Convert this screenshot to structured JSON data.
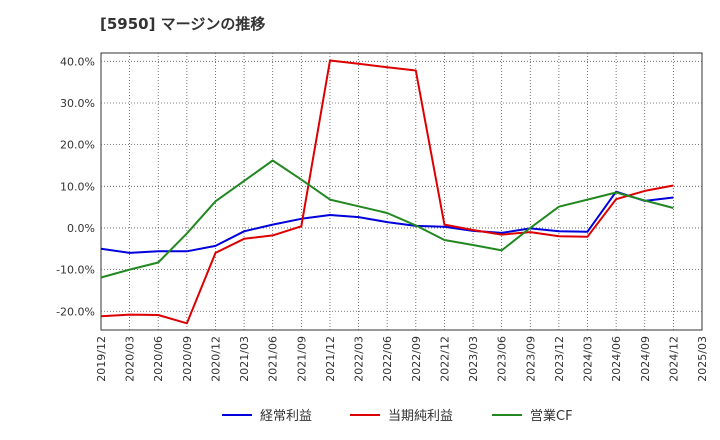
{
  "title": "[5950]  マージンの推移",
  "chart_data": {
    "type": "line",
    "title": "[5950]  マージンの推移",
    "x": [
      "2019/12",
      "2020/03",
      "2020/06",
      "2020/09",
      "2020/12",
      "2021/03",
      "2021/06",
      "2021/09",
      "2021/12",
      "2022/03",
      "2022/06",
      "2022/09",
      "2022/12",
      "2023/03",
      "2023/06",
      "2023/09",
      "2023/12",
      "2024/03",
      "2024/06",
      "2024/09",
      "2024/12",
      "2025/03"
    ],
    "y_ticks": [
      "40.0%",
      "30.0%",
      "20.0%",
      "10.0%",
      "0.0%",
      "-10.0%",
      "-20.0%"
    ],
    "y_tick_values": [
      40,
      30,
      20,
      10,
      0,
      -10,
      -20
    ],
    "ylim": [
      -24.5,
      42
    ],
    "grid": true,
    "legend_position": "bottom",
    "series": [
      {
        "name": "経常利益",
        "color": "#0000dd",
        "values": [
          -5.0,
          -6.0,
          -5.6,
          -5.6,
          -4.3,
          -0.8,
          0.8,
          2.2,
          3.1,
          2.6,
          1.4,
          0.5,
          0.3,
          -0.7,
          -1.2,
          -0.1,
          -0.8,
          -0.9,
          8.7,
          6.5,
          7.3,
          null
        ]
      },
      {
        "name": "当期純利益",
        "color": "#dd0000",
        "values": [
          -21.2,
          -20.8,
          -20.9,
          -22.9,
          -6.0,
          -2.6,
          -1.8,
          0.4,
          40.2,
          39.4,
          38.6,
          37.8,
          0.8,
          -0.5,
          -1.6,
          -1.0,
          -2.0,
          -2.1,
          6.9,
          8.9,
          10.2,
          null
        ]
      },
      {
        "name": "営業CF",
        "color": "#228822",
        "values": [
          -11.9,
          -10.0,
          -8.3,
          -1.3,
          6.4,
          11.3,
          16.2,
          11.6,
          6.8,
          5.2,
          3.6,
          0.6,
          -2.9,
          -4.1,
          -5.4,
          0.0,
          5.1,
          6.8,
          8.5,
          6.6,
          4.8,
          null
        ]
      }
    ]
  }
}
